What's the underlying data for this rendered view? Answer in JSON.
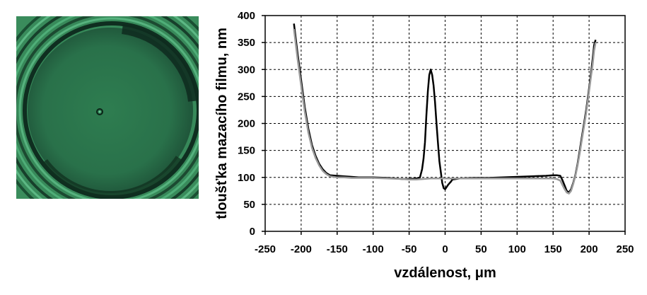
{
  "image": {
    "description_name": "interference-image",
    "colors": {
      "base": "#2e7c4f",
      "dark": "#0d2b1f",
      "light": "#3f9a66"
    }
  },
  "chart_data": {
    "type": "line",
    "title": "",
    "xlabel": "vzdálenost, μm",
    "ylabel": "tloušťka mazacího filmu, nm",
    "xlim": [
      -250,
      250
    ],
    "ylim": [
      0,
      400
    ],
    "xticks": [
      -250,
      -200,
      -150,
      -100,
      -50,
      0,
      50,
      100,
      150,
      200,
      250
    ],
    "yticks": [
      0,
      50,
      100,
      150,
      200,
      250,
      300,
      350,
      400
    ],
    "grid": true,
    "legend": "none",
    "series": [
      {
        "name": "black",
        "color": "#000000",
        "x": [
          -210,
          -205,
          -200,
          -195,
          -190,
          -185,
          -180,
          -175,
          -170,
          -165,
          -160,
          -150,
          -140,
          -130,
          -120,
          -100,
          -80,
          -60,
          -50,
          -40,
          -35,
          -32,
          -30,
          -28,
          -26,
          -24,
          -22,
          -20,
          -18,
          -16,
          -14,
          -12,
          -10,
          -8,
          -6,
          -4,
          -2,
          0,
          2,
          4,
          6,
          8,
          10,
          20,
          40,
          60,
          80,
          100,
          120,
          140,
          150,
          155,
          160,
          163,
          166,
          169,
          172,
          175,
          178,
          181,
          184,
          187,
          190,
          193,
          196,
          199,
          202,
          205,
          207,
          209
        ],
        "y": [
          385,
          330,
          280,
          230,
          190,
          160,
          140,
          125,
          115,
          108,
          104,
          103,
          102,
          101,
          100,
          100,
          99,
          97,
          97,
          98,
          100,
          115,
          135,
          165,
          215,
          260,
          290,
          300,
          290,
          270,
          240,
          200,
          165,
          130,
          110,
          90,
          80,
          78,
          82,
          86,
          89,
          92,
          96,
          98,
          99,
          99,
          100,
          101,
          102,
          103,
          104,
          104,
          103,
          95,
          85,
          75,
          72,
          78,
          90,
          105,
          125,
          150,
          175,
          200,
          225,
          255,
          285,
          320,
          345,
          355
        ]
      },
      {
        "name": "gray",
        "color": "#999999",
        "x": [
          -210,
          -205,
          -200,
          -195,
          -190,
          -185,
          -180,
          -175,
          -170,
          -165,
          -160,
          -150,
          -140,
          -130,
          -120,
          -100,
          -80,
          -60,
          -50,
          -40,
          -30,
          -20,
          -10,
          0,
          10,
          20,
          40,
          60,
          80,
          100,
          120,
          140,
          150,
          155,
          160,
          163,
          166,
          169,
          172,
          175,
          178,
          181,
          184,
          187,
          190,
          193,
          196,
          199,
          202,
          205,
          207,
          209
        ],
        "y": [
          375,
          320,
          270,
          222,
          183,
          155,
          136,
          122,
          112,
          106,
          102,
          100,
          100,
          99,
          99,
          99,
          98,
          97,
          96,
          96,
          97,
          98,
          98,
          98,
          98,
          98,
          98,
          98,
          98,
          98,
          98,
          98,
          98,
          97,
          94,
          86,
          78,
          72,
          70,
          75,
          88,
          103,
          122,
          145,
          170,
          195,
          220,
          250,
          280,
          310,
          335,
          350
        ]
      }
    ]
  }
}
